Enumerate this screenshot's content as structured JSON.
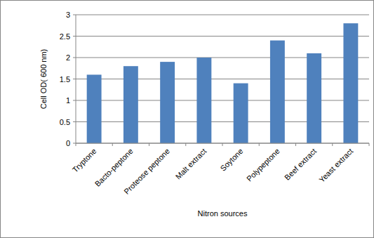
{
  "chart_data": {
    "type": "bar",
    "x_label": "Nitron sources",
    "y_label": "Cell OD( 600 nm)",
    "categories": [
      "Tryptone",
      "Bacto-peptone",
      "Proteose peptone",
      "Malt extract",
      "Soytone",
      "Polypeptone",
      "Beef extract",
      "Yeast extract"
    ],
    "values": [
      1.6,
      1.8,
      1.9,
      2.0,
      1.4,
      2.4,
      2.1,
      2.8
    ],
    "color": "#4f81bd",
    "ylim": [
      0,
      3
    ],
    "yticks": [
      0,
      0.5,
      1,
      1.5,
      2,
      2.5,
      3
    ],
    "grid": true
  }
}
